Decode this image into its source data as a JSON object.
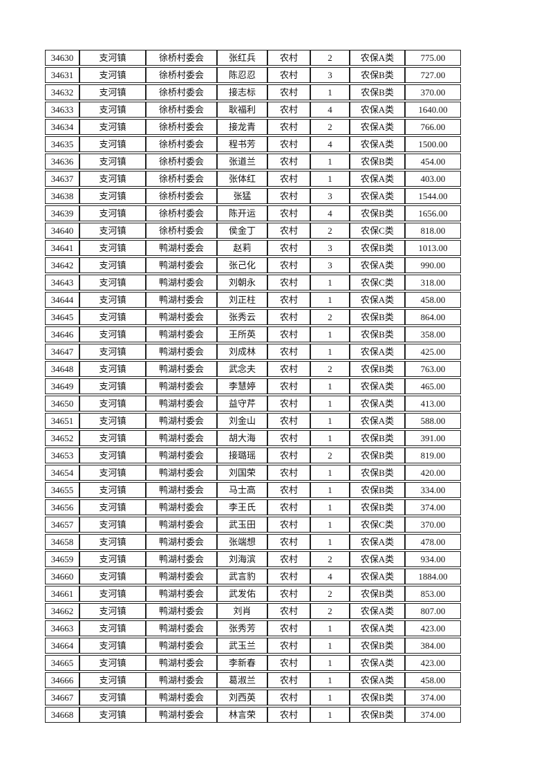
{
  "page": {
    "background_color": "#ffffff",
    "text_color": "#111111",
    "border_color": "#1f1f1f"
  },
  "table": {
    "town": "支河镇",
    "residence_type": "农村",
    "categories_seen": [
      "农保A类",
      "农保B类",
      "农保C类"
    ],
    "villages_seen": [
      "徐桥村委会",
      "鸭湖村委会"
    ],
    "id_range": {
      "first": "34630",
      "last": "34668"
    },
    "rows": [
      [
        "34630",
        "支河镇",
        "徐桥村委会",
        "张红兵",
        "农村",
        "2",
        "农保A类",
        "775.00"
      ],
      [
        "34631",
        "支河镇",
        "徐桥村委会",
        "陈忍忍",
        "农村",
        "3",
        "农保B类",
        "727.00"
      ],
      [
        "34632",
        "支河镇",
        "徐桥村委会",
        "接志标",
        "农村",
        "1",
        "农保B类",
        "370.00"
      ],
      [
        "34633",
        "支河镇",
        "徐桥村委会",
        "耿福利",
        "农村",
        "4",
        "农保A类",
        "1640.00"
      ],
      [
        "34634",
        "支河镇",
        "徐桥村委会",
        "接龙青",
        "农村",
        "2",
        "农保A类",
        "766.00"
      ],
      [
        "34635",
        "支河镇",
        "徐桥村委会",
        "程书芳",
        "农村",
        "4",
        "农保A类",
        "1500.00"
      ],
      [
        "34636",
        "支河镇",
        "徐桥村委会",
        "张道兰",
        "农村",
        "1",
        "农保B类",
        "454.00"
      ],
      [
        "34637",
        "支河镇",
        "徐桥村委会",
        "张体红",
        "农村",
        "1",
        "农保A类",
        "403.00"
      ],
      [
        "34638",
        "支河镇",
        "徐桥村委会",
        "张猛",
        "农村",
        "3",
        "农保A类",
        "1544.00"
      ],
      [
        "34639",
        "支河镇",
        "徐桥村委会",
        "陈开运",
        "农村",
        "4",
        "农保B类",
        "1656.00"
      ],
      [
        "34640",
        "支河镇",
        "徐桥村委会",
        "侯金丁",
        "农村",
        "2",
        "农保C类",
        "818.00"
      ],
      [
        "34641",
        "支河镇",
        "鸭湖村委会",
        "赵莉",
        "农村",
        "3",
        "农保B类",
        "1013.00"
      ],
      [
        "34642",
        "支河镇",
        "鸭湖村委会",
        "张己化",
        "农村",
        "3",
        "农保A类",
        "990.00"
      ],
      [
        "34643",
        "支河镇",
        "鸭湖村委会",
        "刘朝永",
        "农村",
        "1",
        "农保C类",
        "318.00"
      ],
      [
        "34644",
        "支河镇",
        "鸭湖村委会",
        "刘正柱",
        "农村",
        "1",
        "农保A类",
        "458.00"
      ],
      [
        "34645",
        "支河镇",
        "鸭湖村委会",
        "张秀云",
        "农村",
        "2",
        "农保B类",
        "864.00"
      ],
      [
        "34646",
        "支河镇",
        "鸭湖村委会",
        "王所英",
        "农村",
        "1",
        "农保B类",
        "358.00"
      ],
      [
        "34647",
        "支河镇",
        "鸭湖村委会",
        "刘成林",
        "农村",
        "1",
        "农保A类",
        "425.00"
      ],
      [
        "34648",
        "支河镇",
        "鸭湖村委会",
        "武念夫",
        "农村",
        "2",
        "农保B类",
        "763.00"
      ],
      [
        "34649",
        "支河镇",
        "鸭湖村委会",
        "李慧婷",
        "农村",
        "1",
        "农保A类",
        "465.00"
      ],
      [
        "34650",
        "支河镇",
        "鸭湖村委会",
        "益守芹",
        "农村",
        "1",
        "农保A类",
        "413.00"
      ],
      [
        "34651",
        "支河镇",
        "鸭湖村委会",
        "刘金山",
        "农村",
        "1",
        "农保A类",
        "588.00"
      ],
      [
        "34652",
        "支河镇",
        "鸭湖村委会",
        "胡大海",
        "农村",
        "1",
        "农保B类",
        "391.00"
      ],
      [
        "34653",
        "支河镇",
        "鸭湖村委会",
        "接璐瑶",
        "农村",
        "2",
        "农保B类",
        "819.00"
      ],
      [
        "34654",
        "支河镇",
        "鸭湖村委会",
        "刘国荣",
        "农村",
        "1",
        "农保B类",
        "420.00"
      ],
      [
        "34655",
        "支河镇",
        "鸭湖村委会",
        "马士高",
        "农村",
        "1",
        "农保B类",
        "334.00"
      ],
      [
        "34656",
        "支河镇",
        "鸭湖村委会",
        "李王氏",
        "农村",
        "1",
        "农保B类",
        "374.00"
      ],
      [
        "34657",
        "支河镇",
        "鸭湖村委会",
        "武玉田",
        "农村",
        "1",
        "农保C类",
        "370.00"
      ],
      [
        "34658",
        "支河镇",
        "鸭湖村委会",
        "张端想",
        "农村",
        "1",
        "农保A类",
        "478.00"
      ],
      [
        "34659",
        "支河镇",
        "鸭湖村委会",
        "刘海滨",
        "农村",
        "2",
        "农保A类",
        "934.00"
      ],
      [
        "34660",
        "支河镇",
        "鸭湖村委会",
        "武言豹",
        "农村",
        "4",
        "农保A类",
        "1884.00"
      ],
      [
        "34661",
        "支河镇",
        "鸭湖村委会",
        "武发佑",
        "农村",
        "2",
        "农保B类",
        "853.00"
      ],
      [
        "34662",
        "支河镇",
        "鸭湖村委会",
        "刘肖",
        "农村",
        "2",
        "农保A类",
        "807.00"
      ],
      [
        "34663",
        "支河镇",
        "鸭湖村委会",
        "张秀芳",
        "农村",
        "1",
        "农保A类",
        "423.00"
      ],
      [
        "34664",
        "支河镇",
        "鸭湖村委会",
        "武玉兰",
        "农村",
        "1",
        "农保B类",
        "384.00"
      ],
      [
        "34665",
        "支河镇",
        "鸭湖村委会",
        "李新春",
        "农村",
        "1",
        "农保A类",
        "423.00"
      ],
      [
        "34666",
        "支河镇",
        "鸭湖村委会",
        "葛淑兰",
        "农村",
        "1",
        "农保A类",
        "458.00"
      ],
      [
        "34667",
        "支河镇",
        "鸭湖村委会",
        "刘西英",
        "农村",
        "1",
        "农保B类",
        "374.00"
      ],
      [
        "34668",
        "支河镇",
        "鸭湖村委会",
        "林言荣",
        "农村",
        "1",
        "农保B类",
        "374.00"
      ]
    ]
  }
}
